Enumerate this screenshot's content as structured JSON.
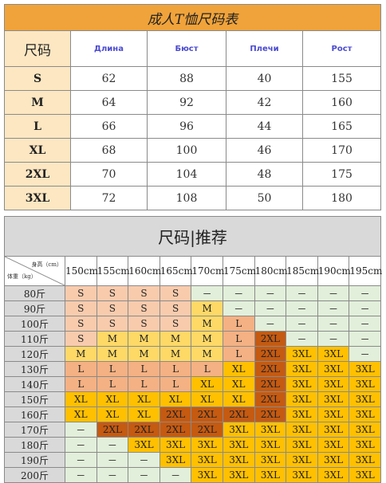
{
  "adult_table": {
    "title": "成人T恤尺码表",
    "size_header": "尺码",
    "columns": [
      "Длина",
      "Бюст",
      "Плечи",
      "Рост"
    ],
    "rows": [
      {
        "size": "S",
        "values": [
          "62",
          "88",
          "40",
          "155"
        ]
      },
      {
        "size": "M",
        "values": [
          "64",
          "92",
          "42",
          "160"
        ]
      },
      {
        "size": "L",
        "values": [
          "66",
          "96",
          "44",
          "165"
        ]
      },
      {
        "size": "XL",
        "values": [
          "68",
          "100",
          "46",
          "170"
        ]
      },
      {
        "size": "2XL",
        "values": [
          "70",
          "104",
          "48",
          "175"
        ]
      },
      {
        "size": "3XL",
        "values": [
          "72",
          "108",
          "50",
          "180"
        ]
      }
    ]
  },
  "recommend_table": {
    "title": "尺码|推荐",
    "corner_height": "身高（cm）",
    "corner_weight": "体重（kg）",
    "heights": [
      "150cm",
      "155cm",
      "160cm",
      "165cm",
      "170cm",
      "175cm",
      "180cm",
      "185cm",
      "190cm",
      "195cm"
    ],
    "rows": [
      {
        "weight": "80斤",
        "cells": [
          "S",
          "S",
          "S",
          "S",
          "－",
          "－",
          "－",
          "－",
          "－",
          "－"
        ]
      },
      {
        "weight": "90斤",
        "cells": [
          "S",
          "S",
          "S",
          "S",
          "M",
          "－",
          "－",
          "－",
          "－",
          "－"
        ]
      },
      {
        "weight": "100斤",
        "cells": [
          "S",
          "S",
          "S",
          "S",
          "M",
          "L",
          "－",
          "－",
          "－",
          "－"
        ]
      },
      {
        "weight": "110斤",
        "cells": [
          "S",
          "M",
          "M",
          "M",
          "M",
          "L",
          "2XL",
          "－",
          "－",
          "－"
        ]
      },
      {
        "weight": "120斤",
        "cells": [
          "M",
          "M",
          "M",
          "M",
          "M",
          "L",
          "2XL",
          "3XL",
          "3XL",
          "－"
        ]
      },
      {
        "weight": "130斤",
        "cells": [
          "L",
          "L",
          "L",
          "L",
          "L",
          "XL",
          "2XL",
          "3XL",
          "3XL",
          "3XL"
        ]
      },
      {
        "weight": "140斤",
        "cells": [
          "L",
          "L",
          "L",
          "L",
          "XL",
          "XL",
          "2XL",
          "3XL",
          "3XL",
          "3XL"
        ]
      },
      {
        "weight": "150斤",
        "cells": [
          "XL",
          "XL",
          "XL",
          "XL",
          "XL",
          "XL",
          "2XL",
          "3XL",
          "3XL",
          "3XL"
        ]
      },
      {
        "weight": "160斤",
        "cells": [
          "XL",
          "XL",
          "XL",
          "2XL",
          "2XL",
          "2XL",
          "2XL",
          "3XL",
          "3XL",
          "3XL"
        ]
      },
      {
        "weight": "170斤",
        "cells": [
          "－",
          "2XL",
          "2XL",
          "2XL",
          "2XL",
          "3XL",
          "3XL",
          "3XL",
          "3XL",
          "3XL"
        ]
      },
      {
        "weight": "180斤",
        "cells": [
          "－",
          "－",
          "3XL",
          "3XL",
          "3XL",
          "3XL",
          "3XL",
          "3XL",
          "3XL",
          "3XL"
        ]
      },
      {
        "weight": "190斤",
        "cells": [
          "－",
          "－",
          "－",
          "3XL",
          "3XL",
          "3XL",
          "3XL",
          "3XL",
          "3XL",
          "3XL"
        ]
      },
      {
        "weight": "200斤",
        "cells": [
          "－",
          "－",
          "－",
          "－",
          "3XL",
          "3XL",
          "3XL",
          "3XL",
          "3XL",
          "3XL"
        ]
      }
    ]
  },
  "colors": {
    "title_bar": "#f0a33a",
    "size_label_bg": "#fde7c2",
    "header_gray": "#d9d9d9",
    "S": "#f8cbad",
    "M": "#ffd966",
    "L": "#f4b183",
    "XL": "#ffc000",
    "2XL": "#c55a11",
    "3XL": "#ffc000",
    "none": "#e2efda"
  }
}
